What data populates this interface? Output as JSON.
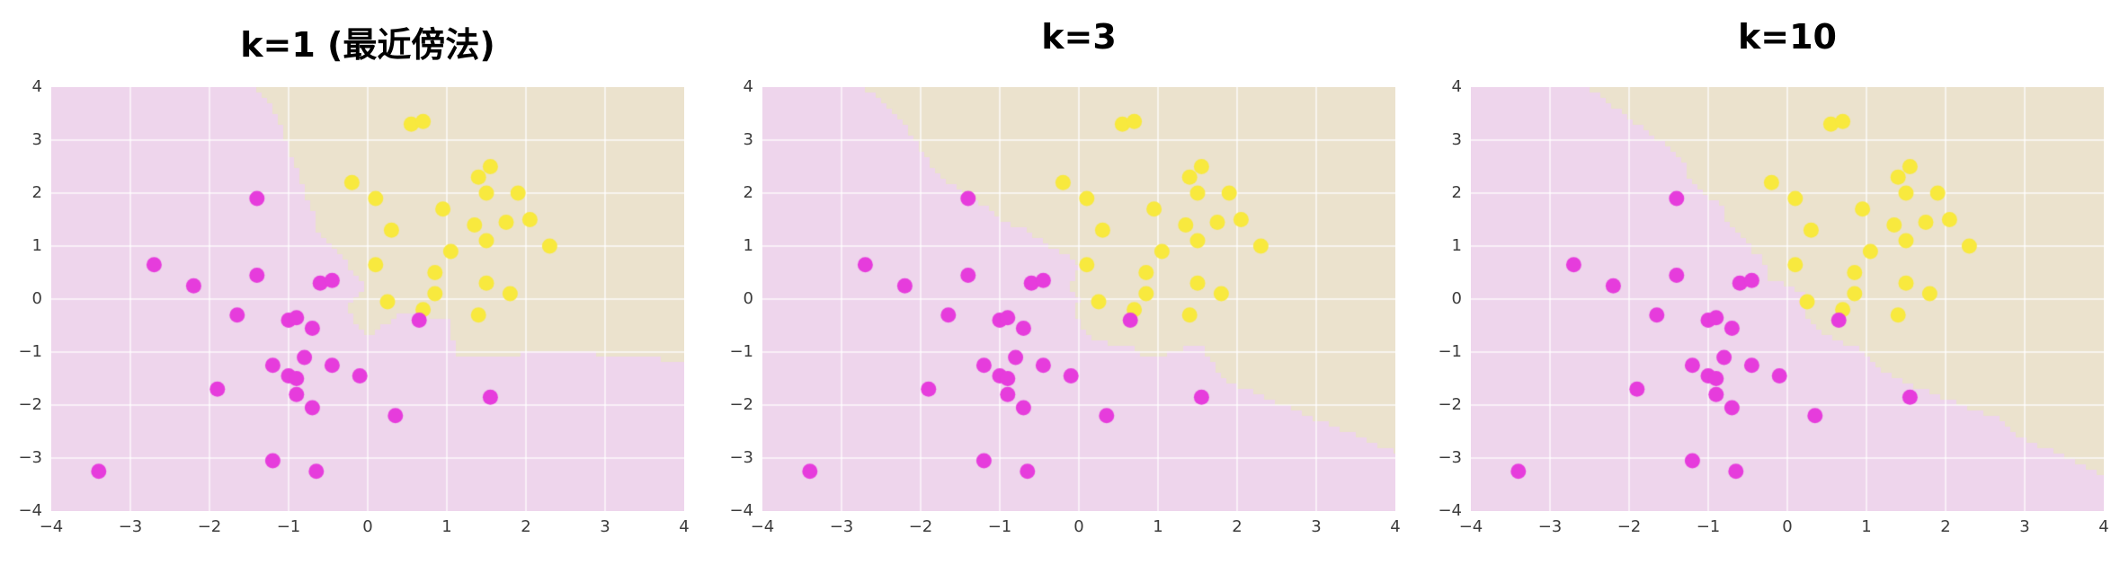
{
  "chart_data": {
    "type": "scatter",
    "subtype": "knn-decision-region-panels",
    "panels": [
      {
        "k": 1,
        "title": "k=1 (最近傍法)"
      },
      {
        "k": 3,
        "title": "k=3"
      },
      {
        "k": 10,
        "title": "k=10"
      }
    ],
    "xlim": [
      -4,
      4
    ],
    "ylim": [
      -4,
      4
    ],
    "x_tick_values": [
      -4,
      -3,
      -2,
      -1,
      0,
      1,
      2,
      3,
      4
    ],
    "x_tick_labels": [
      "−4",
      "−3",
      "−2",
      "−1",
      "0",
      "1",
      "2",
      "3",
      "4"
    ],
    "y_tick_values": [
      -4,
      -3,
      -2,
      -1,
      0,
      1,
      2,
      3,
      4
    ],
    "y_tick_labels": [
      "−4",
      "−3",
      "−2",
      "−1",
      "0",
      "1",
      "2",
      "3",
      "4"
    ],
    "grid": true,
    "gridline_color": "rgba(255,255,255,0.65)",
    "legend_position": "none",
    "tick_label_color": "#3c3c3c",
    "title_color": "#000000",
    "series": [
      {
        "name": "class-0-magenta",
        "marker_color": "#e63cdc",
        "region_color": "#eed5ec",
        "points": [
          [
            -3.4,
            -3.25
          ],
          [
            -2.7,
            0.65
          ],
          [
            -2.2,
            0.25
          ],
          [
            -1.9,
            -1.7
          ],
          [
            -1.65,
            -0.3
          ],
          [
            -1.4,
            1.9
          ],
          [
            -1.4,
            0.45
          ],
          [
            -1.2,
            -1.25
          ],
          [
            -1.2,
            -3.05
          ],
          [
            -1.0,
            -0.4
          ],
          [
            -0.9,
            -0.35
          ],
          [
            -1.0,
            -1.45
          ],
          [
            -0.9,
            -1.5
          ],
          [
            -0.9,
            -1.8
          ],
          [
            -0.8,
            -1.1
          ],
          [
            -0.7,
            -0.55
          ],
          [
            -0.7,
            -2.05
          ],
          [
            -0.65,
            -3.25
          ],
          [
            -0.6,
            0.3
          ],
          [
            -0.45,
            0.35
          ],
          [
            -0.45,
            -1.25
          ],
          [
            -0.1,
            -1.45
          ],
          [
            0.35,
            -2.2
          ],
          [
            0.65,
            -0.4
          ],
          [
            1.55,
            -1.85
          ]
        ]
      },
      {
        "name": "class-1-yellow",
        "marker_color": "#f8e93e",
        "region_color": "#ebe2cd",
        "points": [
          [
            -0.2,
            2.2
          ],
          [
            0.1,
            1.9
          ],
          [
            0.1,
            0.65
          ],
          [
            0.25,
            -0.05
          ],
          [
            0.3,
            1.3
          ],
          [
            0.55,
            3.3
          ],
          [
            0.7,
            3.35
          ],
          [
            0.7,
            -0.2
          ],
          [
            0.85,
            0.5
          ],
          [
            0.85,
            0.1
          ],
          [
            0.95,
            1.7
          ],
          [
            1.05,
            0.9
          ],
          [
            1.35,
            1.4
          ],
          [
            1.4,
            2.3
          ],
          [
            1.4,
            -0.3
          ],
          [
            1.5,
            2.0
          ],
          [
            1.5,
            1.1
          ],
          [
            1.5,
            0.3
          ],
          [
            1.55,
            2.5
          ],
          [
            1.75,
            1.45
          ],
          [
            1.8,
            0.1
          ],
          [
            1.9,
            2.0
          ],
          [
            2.05,
            1.5
          ],
          [
            2.3,
            1.0
          ]
        ]
      }
    ]
  }
}
